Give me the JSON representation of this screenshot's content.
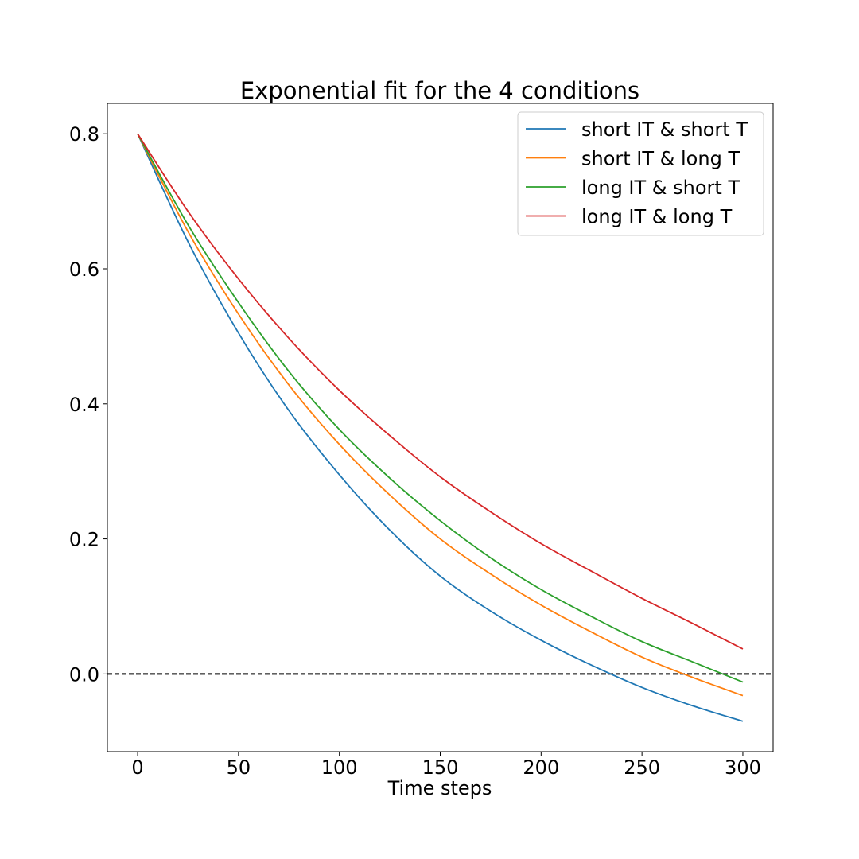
{
  "chart_data": {
    "type": "line",
    "title": "Exponential fit for the 4 conditions",
    "xlabel": "Time steps",
    "ylabel": "",
    "xlim": [
      -15,
      315
    ],
    "ylim": [
      -0.115,
      0.845
    ],
    "xticks": [
      0,
      50,
      100,
      150,
      200,
      250,
      300
    ],
    "xtick_labels": [
      "0",
      "50",
      "100",
      "150",
      "200",
      "250",
      "300"
    ],
    "yticks": [
      0.0,
      0.2,
      0.4,
      0.6,
      0.8
    ],
    "ytick_labels": [
      "0.0",
      "0.2",
      "0.4",
      "0.6",
      "0.8"
    ],
    "grid": false,
    "legend_position": "top-right",
    "reference_line": {
      "y": 0.0,
      "style": "dashed",
      "color": "#000000"
    },
    "x": [
      0,
      25,
      50,
      75,
      100,
      125,
      150,
      175,
      200,
      225,
      250,
      275,
      300
    ],
    "series": [
      {
        "name": "short IT & short T",
        "color": "#1f77b4",
        "values": [
          0.8,
          0.64,
          0.505,
          0.39,
          0.295,
          0.213,
          0.145,
          0.093,
          0.05,
          0.013,
          -0.02,
          -0.047,
          -0.07
        ]
      },
      {
        "name": "short IT & long T",
        "color": "#ff7f0e",
        "values": [
          0.8,
          0.655,
          0.533,
          0.428,
          0.34,
          0.265,
          0.2,
          0.148,
          0.102,
          0.062,
          0.025,
          -0.005,
          -0.032
        ]
      },
      {
        "name": "long IT & short T",
        "color": "#2ca02c",
        "values": [
          0.8,
          0.665,
          0.55,
          0.448,
          0.362,
          0.29,
          0.227,
          0.172,
          0.125,
          0.085,
          0.048,
          0.018,
          -0.012
        ]
      },
      {
        "name": "long IT & long T",
        "color": "#d62728",
        "values": [
          0.8,
          0.685,
          0.585,
          0.497,
          0.42,
          0.353,
          0.292,
          0.24,
          0.193,
          0.152,
          0.112,
          0.075,
          0.037
        ]
      }
    ]
  }
}
